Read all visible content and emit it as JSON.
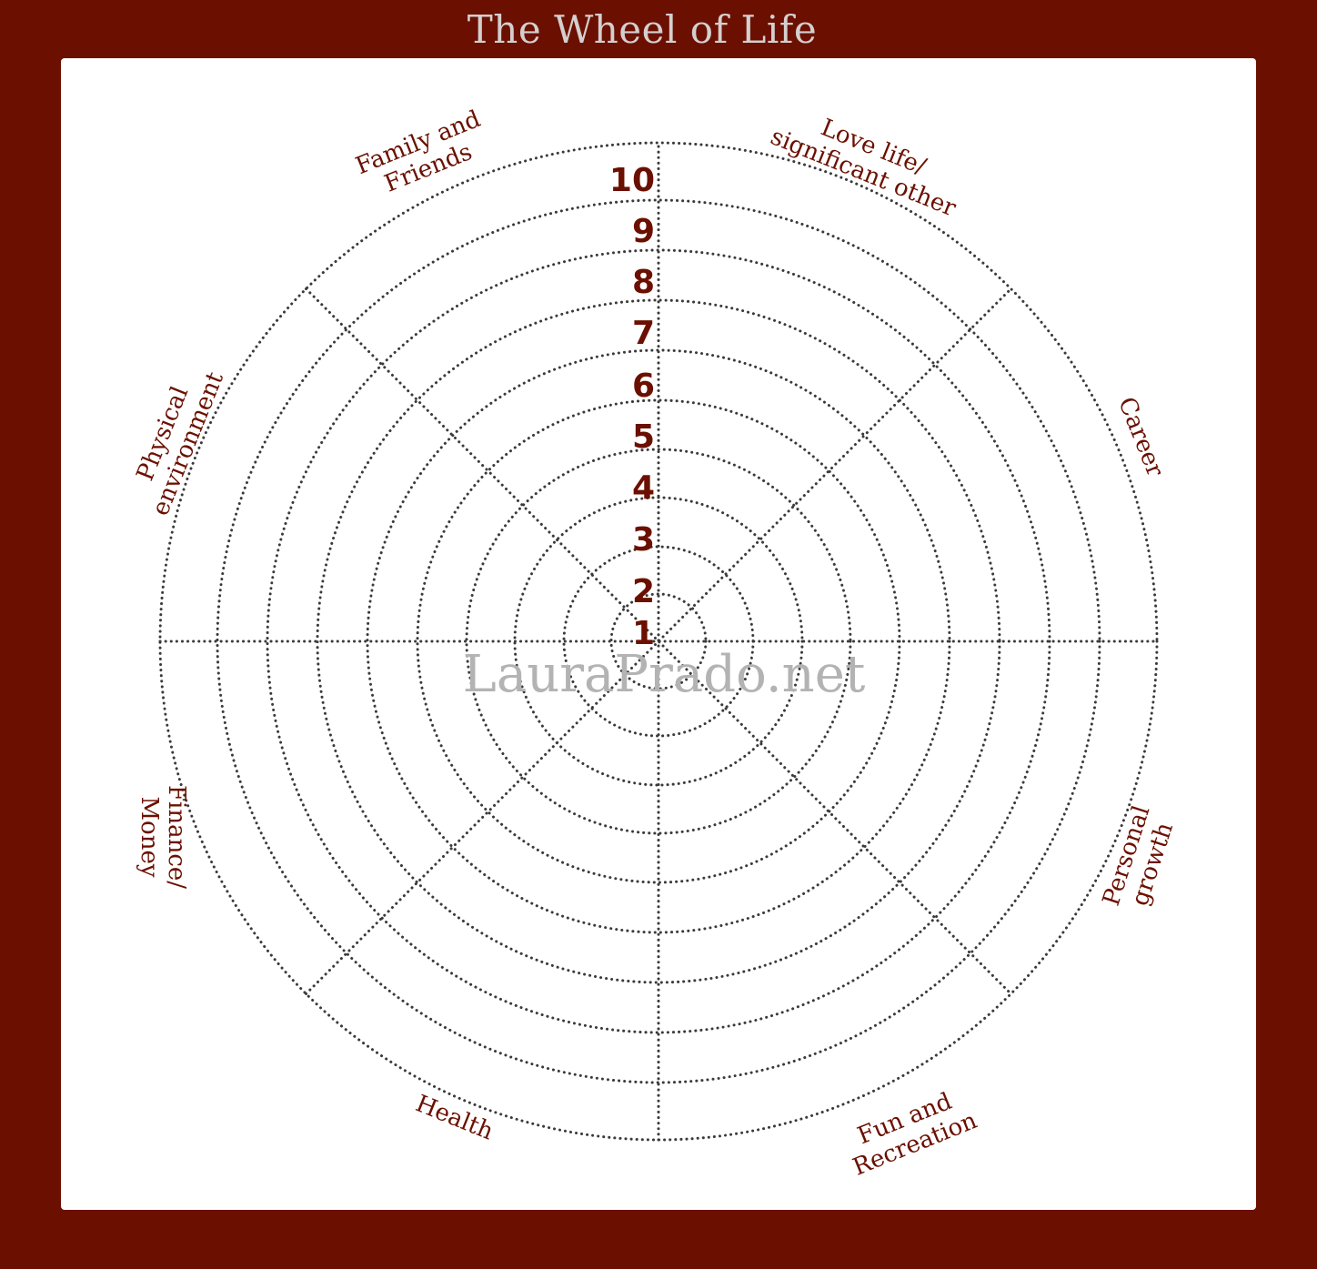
{
  "title": "The Wheel of Life",
  "watermark": "LauraPrado.net",
  "colors": {
    "frame": "#6b1000",
    "accent_text": "#6b1000",
    "title_text": "#d4cfcf",
    "grid": "#3a3a3a",
    "watermark": "#b3b3b3"
  },
  "scale": [
    "1",
    "2",
    "3",
    "4",
    "5",
    "6",
    "7",
    "8",
    "9",
    "10"
  ],
  "categories": [
    {
      "id": "love-life",
      "lines": [
        "Love life/",
        "significant other"
      ]
    },
    {
      "id": "career",
      "lines": [
        "Career"
      ]
    },
    {
      "id": "personal-growth",
      "lines": [
        "Personal",
        "growth"
      ]
    },
    {
      "id": "fun-recreation",
      "lines": [
        "Fun and",
        "Recreation"
      ]
    },
    {
      "id": "health",
      "lines": [
        "Health"
      ]
    },
    {
      "id": "finance-money",
      "lines": [
        "Finance/",
        "Money"
      ]
    },
    {
      "id": "physical-environment",
      "lines": [
        "Physical",
        "environment"
      ]
    },
    {
      "id": "family-friends",
      "lines": [
        "Family and",
        "Friends"
      ]
    }
  ]
}
